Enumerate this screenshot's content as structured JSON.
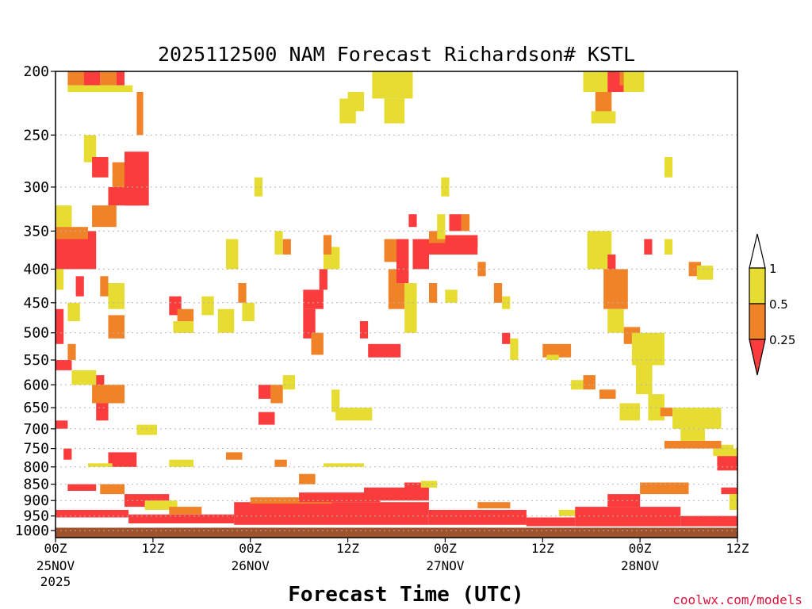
{
  "colors": {
    "band_0_25": "#fa3c3c",
    "band_0_25_05": "#f08228",
    "band_05_1": "#e6dc32",
    "ground": "#a0522d",
    "grid": "#b4b4b4",
    "credit": "#dc143c"
  },
  "chart_data": {
    "type": "heatmap",
    "title": "2025112500 NAM Forecast Richardson# KSTL",
    "xlabel": "Forecast Time (UTC)",
    "ylabel": "",
    "credit": "coolwx.com/models",
    "x_range_hours": [
      0,
      84
    ],
    "y_range_hPa": [
      1025,
      200
    ],
    "y_scale": "log-pressure",
    "y_ticks": [
      200,
      250,
      300,
      350,
      400,
      450,
      500,
      550,
      600,
      650,
      700,
      750,
      800,
      850,
      900,
      950,
      1000
    ],
    "x_ticks": [
      {
        "hour": 0,
        "label": "00Z",
        "date": "25NOV",
        "year": "2025"
      },
      {
        "hour": 12,
        "label": "12Z",
        "date": "",
        "year": ""
      },
      {
        "hour": 24,
        "label": "00Z",
        "date": "26NOV",
        "year": ""
      },
      {
        "hour": 36,
        "label": "12Z",
        "date": "",
        "year": ""
      },
      {
        "hour": 48,
        "label": "00Z",
        "date": "27NOV",
        "year": ""
      },
      {
        "hour": 60,
        "label": "12Z",
        "date": "",
        "year": ""
      },
      {
        "hour": 72,
        "label": "00Z",
        "date": "28NOV",
        "year": ""
      },
      {
        "hour": 84,
        "label": "12Z",
        "date": "",
        "year": ""
      }
    ],
    "legend": {
      "position": "right",
      "labels": [
        "1",
        "0.5",
        "0.25"
      ],
      "bands": [
        {
          "range": "0.5-1",
          "color": "#e6dc32"
        },
        {
          "range": "0.25-0.5",
          "color": "#f08228"
        },
        {
          "range": "<0.25",
          "color": "#fa3c3c"
        }
      ]
    },
    "ground_level_hPa": 990,
    "cells": [
      {
        "t0": 1.5,
        "t1": 3.5,
        "p0": 200,
        "p1": 210,
        "cat": "orange"
      },
      {
        "t0": 3.5,
        "t1": 5.5,
        "p0": 200,
        "p1": 210,
        "cat": "red"
      },
      {
        "t0": 5.5,
        "t1": 7.5,
        "p0": 200,
        "p1": 210,
        "cat": "orange"
      },
      {
        "t0": 7.5,
        "t1": 8.5,
        "p0": 200,
        "p1": 210,
        "cat": "red"
      },
      {
        "t0": 1.5,
        "t1": 9.5,
        "p0": 210,
        "p1": 215,
        "cat": "yellow"
      },
      {
        "t0": 10,
        "t1": 10.8,
        "p0": 215,
        "p1": 250,
        "cat": "orange"
      },
      {
        "t0": 3.5,
        "t1": 5,
        "p0": 250,
        "p1": 275,
        "cat": "yellow"
      },
      {
        "t0": 4.5,
        "t1": 6.5,
        "p0": 270,
        "p1": 290,
        "cat": "red"
      },
      {
        "t0": 7,
        "t1": 8.5,
        "p0": 275,
        "p1": 300,
        "cat": "orange"
      },
      {
        "t0": 8.5,
        "t1": 11.5,
        "p0": 265,
        "p1": 320,
        "cat": "red"
      },
      {
        "t0": 6.5,
        "t1": 10.5,
        "p0": 300,
        "p1": 320,
        "cat": "red"
      },
      {
        "t0": 4.5,
        "t1": 7.5,
        "p0": 320,
        "p1": 345,
        "cat": "orange"
      },
      {
        "t0": 0,
        "t1": 2,
        "p0": 320,
        "p1": 345,
        "cat": "yellow"
      },
      {
        "t0": 0,
        "t1": 5,
        "p0": 350,
        "p1": 400,
        "cat": "red"
      },
      {
        "t0": 0,
        "t1": 4,
        "p0": 345,
        "p1": 360,
        "cat": "orange"
      },
      {
        "t0": 0,
        "t1": 1,
        "p0": 400,
        "p1": 430,
        "cat": "yellow"
      },
      {
        "t0": 2.5,
        "t1": 3.5,
        "p0": 410,
        "p1": 440,
        "cat": "red"
      },
      {
        "t0": 5.5,
        "t1": 6.5,
        "p0": 410,
        "p1": 440,
        "cat": "orange"
      },
      {
        "t0": 6.5,
        "t1": 8.5,
        "p0": 420,
        "p1": 460,
        "cat": "yellow"
      },
      {
        "t0": 0,
        "t1": 1,
        "p0": 460,
        "p1": 520,
        "cat": "red"
      },
      {
        "t0": 1.5,
        "t1": 3,
        "p0": 450,
        "p1": 480,
        "cat": "yellow"
      },
      {
        "t0": 6.5,
        "t1": 8.5,
        "p0": 470,
        "p1": 510,
        "cat": "orange"
      },
      {
        "t0": 1.5,
        "t1": 2.5,
        "p0": 520,
        "p1": 550,
        "cat": "orange"
      },
      {
        "t0": 0,
        "t1": 2,
        "p0": 550,
        "p1": 570,
        "cat": "red"
      },
      {
        "t0": 2,
        "t1": 5,
        "p0": 570,
        "p1": 600,
        "cat": "yellow"
      },
      {
        "t0": 5,
        "t1": 6,
        "p0": 580,
        "p1": 620,
        "cat": "red"
      },
      {
        "t0": 4.5,
        "t1": 8.5,
        "p0": 600,
        "p1": 640,
        "cat": "orange"
      },
      {
        "t0": 5,
        "t1": 6.5,
        "p0": 640,
        "p1": 680,
        "cat": "red"
      },
      {
        "t0": 0,
        "t1": 1.5,
        "p0": 680,
        "p1": 700,
        "cat": "red"
      },
      {
        "t0": 10,
        "t1": 12.5,
        "p0": 690,
        "p1": 715,
        "cat": "yellow"
      },
      {
        "t0": 1,
        "t1": 2,
        "p0": 750,
        "p1": 780,
        "cat": "red"
      },
      {
        "t0": 6.5,
        "t1": 10,
        "p0": 760,
        "p1": 800,
        "cat": "red"
      },
      {
        "t0": 4,
        "t1": 7,
        "p0": 790,
        "p1": 800,
        "cat": "yellow"
      },
      {
        "t0": 1.5,
        "t1": 5,
        "p0": 850,
        "p1": 870,
        "cat": "red"
      },
      {
        "t0": 5.5,
        "t1": 8.5,
        "p0": 850,
        "p1": 880,
        "cat": "orange"
      },
      {
        "t0": 8.5,
        "t1": 14,
        "p0": 880,
        "p1": 920,
        "cat": "red"
      },
      {
        "t0": 11,
        "t1": 15,
        "p0": 900,
        "p1": 930,
        "cat": "yellow"
      },
      {
        "t0": 0,
        "t1": 9,
        "p0": 930,
        "p1": 955,
        "cat": "red"
      },
      {
        "t0": 9,
        "t1": 22,
        "p0": 945,
        "p1": 975,
        "cat": "red"
      },
      {
        "t0": 14,
        "t1": 18,
        "p0": 920,
        "p1": 945,
        "cat": "orange"
      },
      {
        "t0": 22,
        "t1": 46,
        "p0": 905,
        "p1": 980,
        "cat": "red"
      },
      {
        "t0": 24,
        "t1": 34,
        "p0": 890,
        "p1": 910,
        "cat": "orange"
      },
      {
        "t0": 30,
        "t1": 40,
        "p0": 875,
        "p1": 905,
        "cat": "red"
      },
      {
        "t0": 38,
        "t1": 46,
        "p0": 860,
        "p1": 900,
        "cat": "red"
      },
      {
        "t0": 43,
        "t1": 46,
        "p0": 845,
        "p1": 870,
        "cat": "red"
      },
      {
        "t0": 45,
        "t1": 47,
        "p0": 840,
        "p1": 860,
        "cat": "yellow"
      },
      {
        "t0": 46,
        "t1": 58,
        "p0": 930,
        "p1": 980,
        "cat": "red"
      },
      {
        "t0": 52,
        "t1": 56,
        "p0": 905,
        "p1": 925,
        "cat": "orange"
      },
      {
        "t0": 58,
        "t1": 64,
        "p0": 955,
        "p1": 985,
        "cat": "red"
      },
      {
        "t0": 62,
        "t1": 66,
        "p0": 930,
        "p1": 950,
        "cat": "yellow"
      },
      {
        "t0": 64,
        "t1": 77,
        "p0": 920,
        "p1": 985,
        "cat": "red"
      },
      {
        "t0": 68,
        "t1": 72,
        "p0": 880,
        "p1": 920,
        "cat": "red"
      },
      {
        "t0": 72,
        "t1": 78,
        "p0": 845,
        "p1": 880,
        "cat": "orange"
      },
      {
        "t0": 77,
        "t1": 84,
        "p0": 950,
        "p1": 985,
        "cat": "red"
      },
      {
        "t0": 82,
        "t1": 84,
        "p0": 860,
        "p1": 880,
        "cat": "red"
      },
      {
        "t0": 81.5,
        "t1": 84,
        "p0": 770,
        "p1": 810,
        "cat": "red"
      },
      {
        "t0": 75,
        "t1": 82,
        "p0": 730,
        "p1": 750,
        "cat": "orange"
      },
      {
        "t0": 81,
        "t1": 84,
        "p0": 750,
        "p1": 770,
        "cat": "yellow"
      },
      {
        "t0": 14,
        "t1": 15.5,
        "p0": 440,
        "p1": 470,
        "cat": "red"
      },
      {
        "t0": 15,
        "t1": 17,
        "p0": 460,
        "p1": 500,
        "cat": "orange"
      },
      {
        "t0": 14.5,
        "t1": 17,
        "p0": 480,
        "p1": 500,
        "cat": "yellow"
      },
      {
        "t0": 18,
        "t1": 19.5,
        "p0": 440,
        "p1": 470,
        "cat": "yellow"
      },
      {
        "t0": 20,
        "t1": 22,
        "p0": 460,
        "p1": 500,
        "cat": "yellow"
      },
      {
        "t0": 21,
        "t1": 22.5,
        "p0": 360,
        "p1": 400,
        "cat": "yellow"
      },
      {
        "t0": 22.5,
        "t1": 23.5,
        "p0": 420,
        "p1": 450,
        "cat": "orange"
      },
      {
        "t0": 23,
        "t1": 24.5,
        "p0": 450,
        "p1": 480,
        "cat": "yellow"
      },
      {
        "t0": 24.5,
        "t1": 25.5,
        "p0": 290,
        "p1": 310,
        "cat": "yellow"
      },
      {
        "t0": 27,
        "t1": 28,
        "p0": 350,
        "p1": 380,
        "cat": "yellow"
      },
      {
        "t0": 28,
        "t1": 29,
        "p0": 360,
        "p1": 380,
        "cat": "orange"
      },
      {
        "t0": 30.5,
        "t1": 33,
        "p0": 430,
        "p1": 460,
        "cat": "red"
      },
      {
        "t0": 30.5,
        "t1": 32,
        "p0": 460,
        "p1": 510,
        "cat": "red"
      },
      {
        "t0": 31.5,
        "t1": 33,
        "p0": 500,
        "p1": 540,
        "cat": "orange"
      },
      {
        "t0": 32.5,
        "t1": 33.5,
        "p0": 400,
        "p1": 430,
        "cat": "red"
      },
      {
        "t0": 33,
        "t1": 35,
        "p0": 370,
        "p1": 400,
        "cat": "yellow"
      },
      {
        "t0": 33,
        "t1": 34,
        "p0": 355,
        "p1": 380,
        "cat": "orange"
      },
      {
        "t0": 25,
        "t1": 26.5,
        "p0": 600,
        "p1": 630,
        "cat": "red"
      },
      {
        "t0": 25,
        "t1": 27,
        "p0": 660,
        "p1": 690,
        "cat": "red"
      },
      {
        "t0": 26.5,
        "t1": 28,
        "p0": 600,
        "p1": 640,
        "cat": "orange"
      },
      {
        "t0": 28,
        "t1": 29.5,
        "p0": 580,
        "p1": 610,
        "cat": "yellow"
      },
      {
        "t0": 34,
        "t1": 35,
        "p0": 610,
        "p1": 660,
        "cat": "yellow"
      },
      {
        "t0": 34.5,
        "t1": 39,
        "p0": 650,
        "p1": 680,
        "cat": "yellow"
      },
      {
        "t0": 35,
        "t1": 37,
        "p0": 220,
        "p1": 240,
        "cat": "yellow"
      },
      {
        "t0": 39,
        "t1": 44,
        "p0": 200,
        "p1": 220,
        "cat": "yellow"
      },
      {
        "t0": 40.5,
        "t1": 43,
        "p0": 220,
        "p1": 240,
        "cat": "yellow"
      },
      {
        "t0": 36,
        "t1": 38,
        "p0": 215,
        "p1": 230,
        "cat": "yellow"
      },
      {
        "t0": 37.5,
        "t1": 38.5,
        "p0": 480,
        "p1": 510,
        "cat": "red"
      },
      {
        "t0": 38.5,
        "t1": 42.5,
        "p0": 520,
        "p1": 545,
        "cat": "red"
      },
      {
        "t0": 40.5,
        "t1": 42,
        "p0": 360,
        "p1": 390,
        "cat": "orange"
      },
      {
        "t0": 41,
        "t1": 43,
        "p0": 400,
        "p1": 460,
        "cat": "orange"
      },
      {
        "t0": 42,
        "t1": 43.5,
        "p0": 360,
        "p1": 420,
        "cat": "red"
      },
      {
        "t0": 43,
        "t1": 44.5,
        "p0": 420,
        "p1": 500,
        "cat": "yellow"
      },
      {
        "t0": 44,
        "t1": 46,
        "p0": 360,
        "p1": 400,
        "cat": "red"
      },
      {
        "t0": 45.5,
        "t1": 52,
        "p0": 360,
        "p1": 380,
        "cat": "red"
      },
      {
        "t0": 46,
        "t1": 48,
        "p0": 350,
        "p1": 365,
        "cat": "orange"
      },
      {
        "t0": 48,
        "t1": 52,
        "p0": 355,
        "p1": 370,
        "cat": "red"
      },
      {
        "t0": 48.5,
        "t1": 50,
        "p0": 330,
        "p1": 350,
        "cat": "red"
      },
      {
        "t0": 47,
        "t1": 48,
        "p0": 330,
        "p1": 360,
        "cat": "yellow"
      },
      {
        "t0": 43.5,
        "t1": 44.5,
        "p0": 330,
        "p1": 345,
        "cat": "red"
      },
      {
        "t0": 50,
        "t1": 51,
        "p0": 330,
        "p1": 350,
        "cat": "orange"
      },
      {
        "t0": 47.5,
        "t1": 48.5,
        "p0": 290,
        "p1": 310,
        "cat": "yellow"
      },
      {
        "t0": 46,
        "t1": 47,
        "p0": 420,
        "p1": 450,
        "cat": "orange"
      },
      {
        "t0": 48,
        "t1": 49.5,
        "p0": 430,
        "p1": 450,
        "cat": "yellow"
      },
      {
        "t0": 52,
        "t1": 53,
        "p0": 390,
        "p1": 410,
        "cat": "orange"
      },
      {
        "t0": 54,
        "t1": 55,
        "p0": 420,
        "p1": 450,
        "cat": "orange"
      },
      {
        "t0": 55,
        "t1": 56,
        "p0": 440,
        "p1": 460,
        "cat": "yellow"
      },
      {
        "t0": 55,
        "t1": 56,
        "p0": 500,
        "p1": 520,
        "cat": "red"
      },
      {
        "t0": 56,
        "t1": 57,
        "p0": 510,
        "p1": 550,
        "cat": "yellow"
      },
      {
        "t0": 60,
        "t1": 63.5,
        "p0": 520,
        "p1": 545,
        "cat": "orange"
      },
      {
        "t0": 60.5,
        "t1": 62,
        "p0": 540,
        "p1": 550,
        "cat": "yellow"
      },
      {
        "t0": 63.5,
        "t1": 65,
        "p0": 590,
        "p1": 610,
        "cat": "yellow"
      },
      {
        "t0": 65,
        "t1": 66.5,
        "p0": 580,
        "p1": 610,
        "cat": "orange"
      },
      {
        "t0": 65,
        "t1": 68,
        "p0": 200,
        "p1": 215,
        "cat": "yellow"
      },
      {
        "t0": 68,
        "t1": 70,
        "p0": 200,
        "p1": 215,
        "cat": "red"
      },
      {
        "t0": 69.5,
        "t1": 70.5,
        "p0": 200,
        "p1": 210,
        "cat": "orange"
      },
      {
        "t0": 70,
        "t1": 72.5,
        "p0": 200,
        "p1": 215,
        "cat": "yellow"
      },
      {
        "t0": 66.5,
        "t1": 68.5,
        "p0": 215,
        "p1": 235,
        "cat": "orange"
      },
      {
        "t0": 66,
        "t1": 69,
        "p0": 230,
        "p1": 240,
        "cat": "yellow"
      },
      {
        "t0": 65.5,
        "t1": 68.5,
        "p0": 350,
        "p1": 400,
        "cat": "yellow"
      },
      {
        "t0": 68,
        "t1": 69,
        "p0": 380,
        "p1": 440,
        "cat": "red"
      },
      {
        "t0": 67.5,
        "t1": 70.5,
        "p0": 400,
        "p1": 460,
        "cat": "orange"
      },
      {
        "t0": 68,
        "t1": 70,
        "p0": 460,
        "p1": 500,
        "cat": "yellow"
      },
      {
        "t0": 70,
        "t1": 72,
        "p0": 490,
        "p1": 520,
        "cat": "orange"
      },
      {
        "t0": 71,
        "t1": 75,
        "p0": 500,
        "p1": 560,
        "cat": "yellow"
      },
      {
        "t0": 71.5,
        "t1": 73.5,
        "p0": 560,
        "p1": 620,
        "cat": "yellow"
      },
      {
        "t0": 73,
        "t1": 75,
        "p0": 620,
        "p1": 680,
        "cat": "yellow"
      },
      {
        "t0": 69.5,
        "t1": 72,
        "p0": 640,
        "p1": 680,
        "cat": "yellow"
      },
      {
        "t0": 67,
        "t1": 69,
        "p0": 610,
        "p1": 630,
        "cat": "orange"
      },
      {
        "t0": 74.5,
        "t1": 76,
        "p0": 650,
        "p1": 670,
        "cat": "orange"
      },
      {
        "t0": 76,
        "t1": 82,
        "p0": 650,
        "p1": 700,
        "cat": "yellow"
      },
      {
        "t0": 77,
        "t1": 80,
        "p0": 700,
        "p1": 730,
        "cat": "yellow"
      },
      {
        "t0": 72.5,
        "t1": 73.5,
        "p0": 360,
        "p1": 380,
        "cat": "red"
      },
      {
        "t0": 75,
        "t1": 76,
        "p0": 360,
        "p1": 380,
        "cat": "yellow"
      },
      {
        "t0": 75,
        "t1": 76,
        "p0": 270,
        "p1": 290,
        "cat": "yellow"
      },
      {
        "t0": 78,
        "t1": 79.5,
        "p0": 390,
        "p1": 410,
        "cat": "orange"
      },
      {
        "t0": 79,
        "t1": 81,
        "p0": 395,
        "p1": 415,
        "cat": "yellow"
      },
      {
        "t0": 82,
        "t1": 83.5,
        "p0": 740,
        "p1": 760,
        "cat": "yellow"
      },
      {
        "t0": 83,
        "t1": 84,
        "p0": 880,
        "p1": 930,
        "cat": "yellow"
      },
      {
        "t0": 14,
        "t1": 17,
        "p0": 780,
        "p1": 800,
        "cat": "yellow"
      },
      {
        "t0": 21,
        "t1": 23,
        "p0": 760,
        "p1": 780,
        "cat": "orange"
      },
      {
        "t0": 27,
        "t1": 28.5,
        "p0": 780,
        "p1": 800,
        "cat": "orange"
      },
      {
        "t0": 30,
        "t1": 32,
        "p0": 820,
        "p1": 850,
        "cat": "orange"
      },
      {
        "t0": 33,
        "t1": 38,
        "p0": 790,
        "p1": 800,
        "cat": "yellow"
      }
    ]
  }
}
